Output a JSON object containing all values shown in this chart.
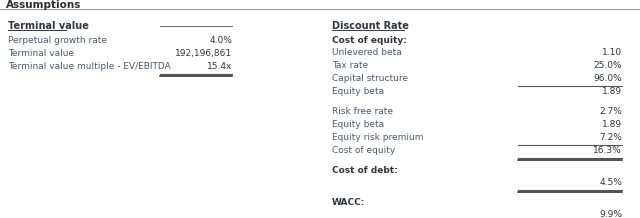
{
  "title": "Assumptions",
  "bg_color": "#ffffff",
  "header_color": "#2f3640",
  "text_color": "#4a5a6a",
  "value_color": "#2f3640",
  "left_section_header": "Terminal value",
  "left_rows": [
    {
      "label": "Perpetual growth rate",
      "value": "4.0%",
      "line_above": true,
      "line_below": false,
      "double_line_below": false
    },
    {
      "label": "Terminal value",
      "value": "192,196,861",
      "line_above": false,
      "line_below": false,
      "double_line_below": false
    },
    {
      "label": "Terminal value multiple - EV/EBITDA",
      "value": "15.4x",
      "line_above": false,
      "line_below": true,
      "double_line_below": true
    }
  ],
  "right_section_header": "Discount Rate",
  "right_groups": [
    {
      "group_label": "Cost of equity:",
      "bold_label": true,
      "rows": [
        {
          "label": "Unlevered beta",
          "value": "1.10",
          "line_below": false,
          "double_line_below": false
        },
        {
          "label": "Tax rate",
          "value": "25.0%",
          "line_below": false,
          "double_line_below": false
        },
        {
          "label": "Capital structure",
          "value": "96.0%",
          "line_below": true,
          "double_line_below": false
        },
        {
          "label": "Equity beta",
          "value": "1.89",
          "line_below": false,
          "double_line_below": false
        }
      ]
    },
    {
      "group_label": null,
      "bold_label": false,
      "rows": [
        {
          "label": "Risk free rate",
          "value": "2.7%",
          "line_below": false,
          "double_line_below": false
        },
        {
          "label": "Equity beta",
          "value": "1.89",
          "line_below": false,
          "double_line_below": false
        },
        {
          "label": "Equity risk premium",
          "value": "7.2%",
          "line_below": true,
          "double_line_below": false
        },
        {
          "label": "Cost of equity",
          "value": "16.3%",
          "line_below": true,
          "double_line_below": true
        }
      ]
    },
    {
      "group_label": "Cost of debt:",
      "bold_label": true,
      "rows": [
        {
          "label": null,
          "value": "4.5%",
          "line_below": true,
          "double_line_below": true
        }
      ]
    },
    {
      "group_label": "WACC:",
      "bold_label": true,
      "rows": [
        {
          "label": null,
          "value": "9.9%",
          "line_below": true,
          "double_line_below": false
        }
      ]
    }
  ]
}
